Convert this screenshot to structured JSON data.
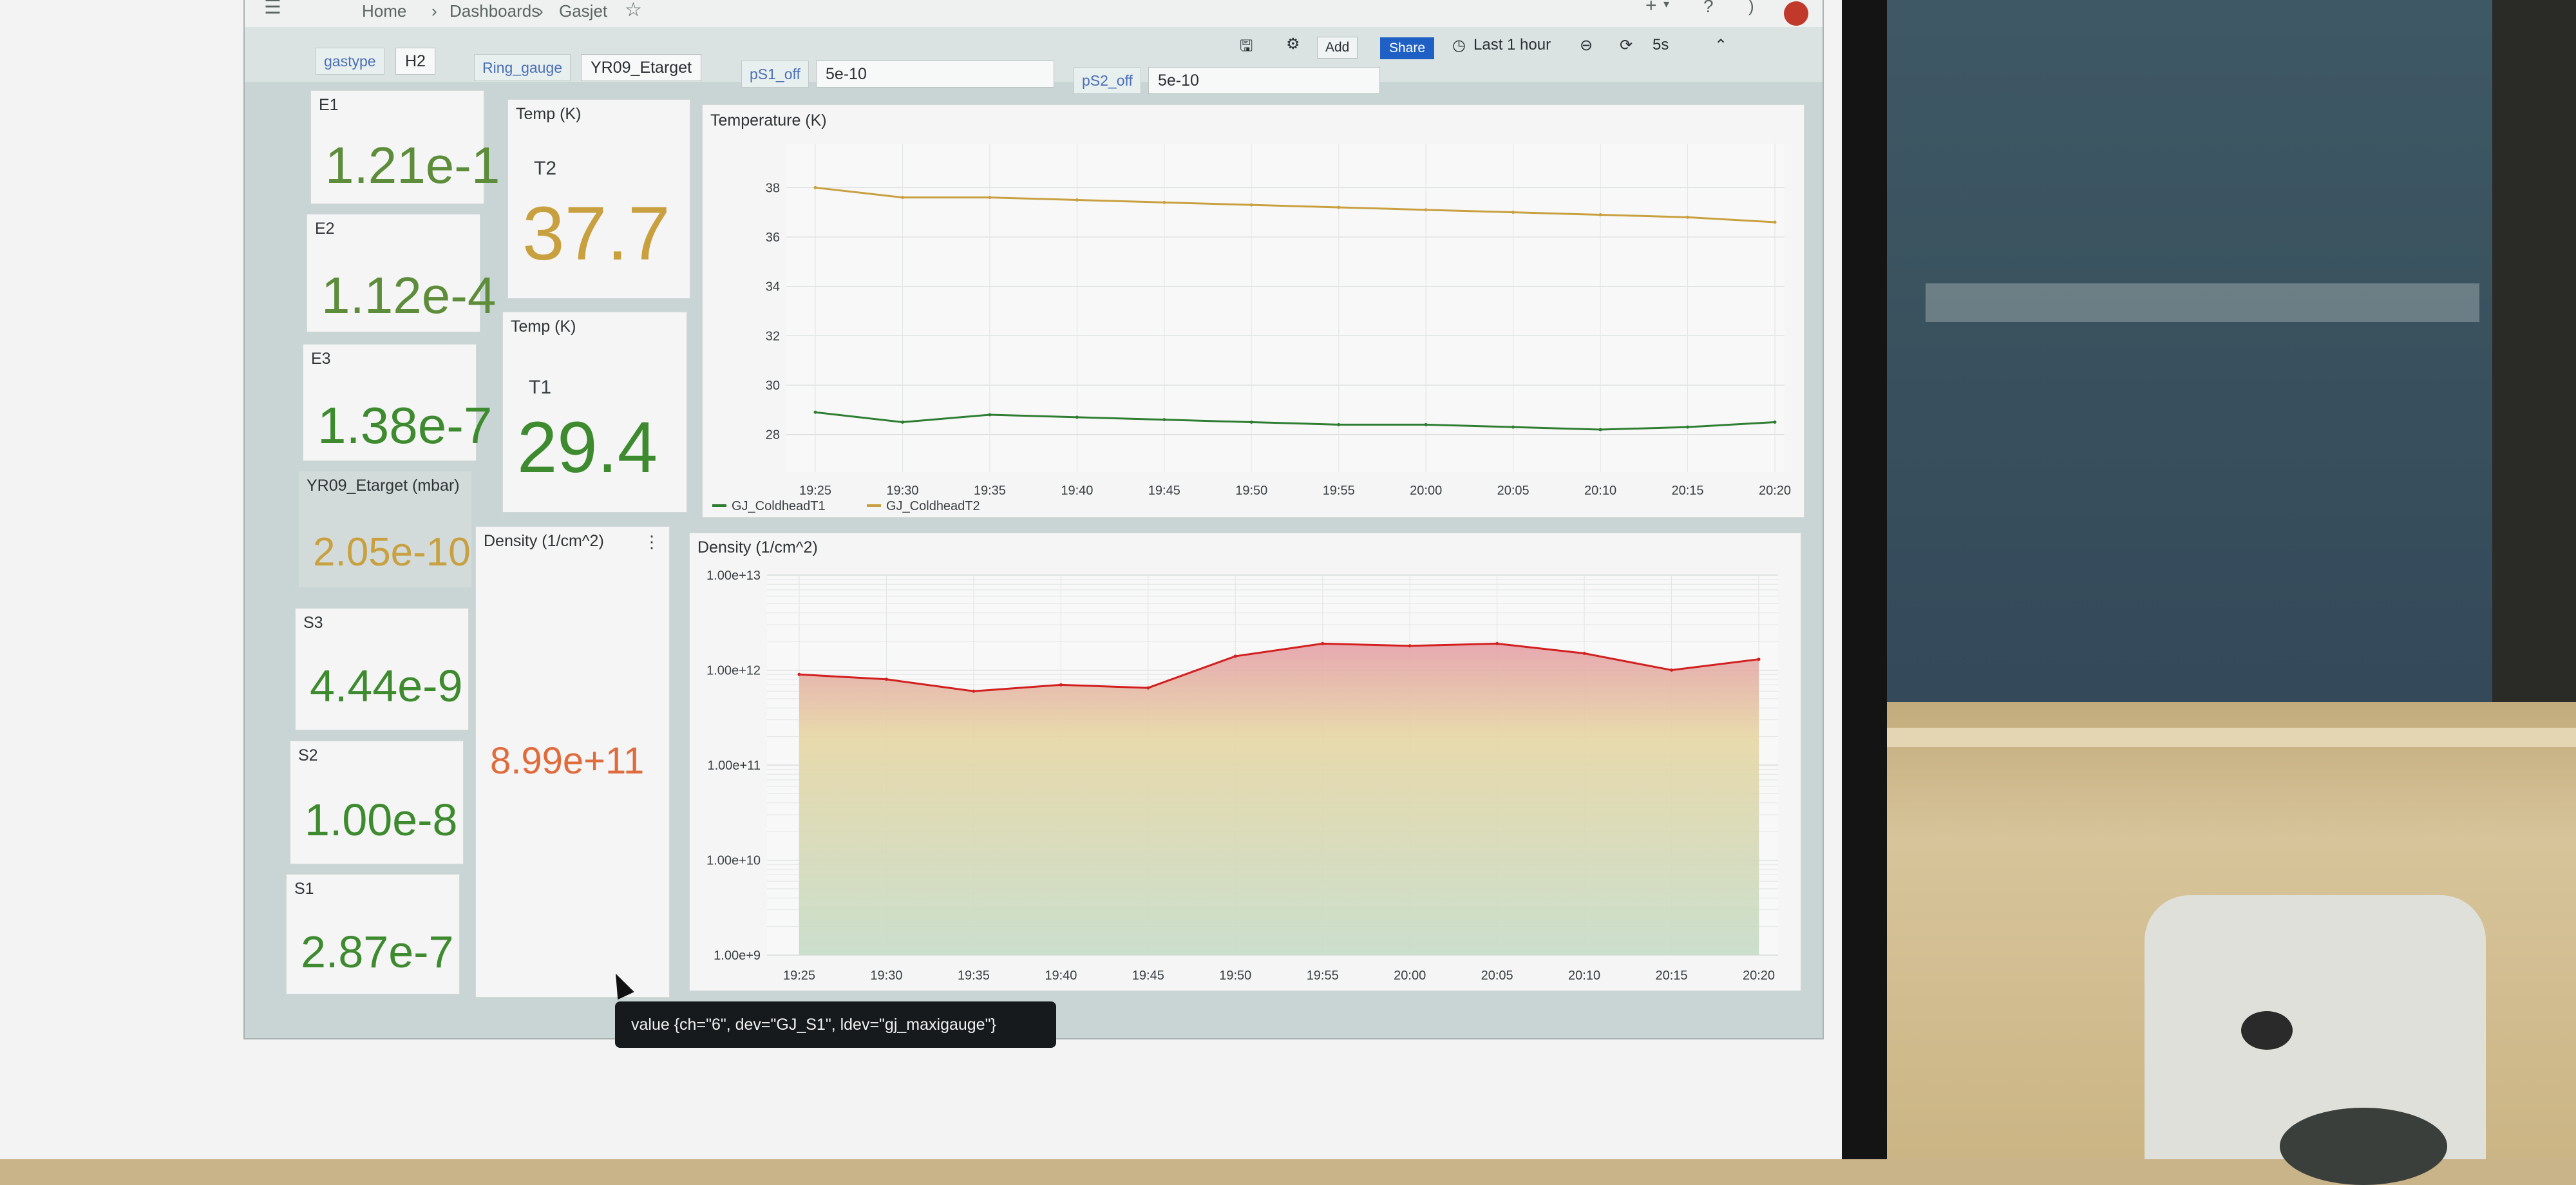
{
  "breadcrumb": {
    "home": "Home",
    "dashboards": "Dashboards",
    "current": "Gasjet"
  },
  "toolbar": {
    "add_label": "Add",
    "share_label": "Share",
    "time_range": "Last 1 hour",
    "refresh_interval": "5s"
  },
  "variables": {
    "gastype": {
      "label": "gastype",
      "value": "H2"
    },
    "ring_gauge": {
      "label": "Ring_gauge",
      "value": "YR09_Etarget"
    },
    "ps1_off": {
      "label": "pS1_off",
      "value": "5e-10"
    },
    "ps2_off": {
      "label": "pS2_off",
      "value": "5e-10"
    }
  },
  "stats": {
    "e1": {
      "title": "E1",
      "value": "1.21e-1"
    },
    "e2": {
      "title": "E2",
      "value": "1.12e-4"
    },
    "e3": {
      "title": "E3",
      "value": "1.38e-7"
    },
    "ring": {
      "title": "YR09_Etarget (mbar)",
      "value": "2.05e-10"
    },
    "s3": {
      "title": "S3",
      "value": "4.44e-9"
    },
    "s2": {
      "title": "S2",
      "value": "1.00e-8"
    },
    "s1": {
      "title": "S1",
      "value": "2.87e-7"
    },
    "t2": {
      "title": "Temp (K)",
      "sub": "T2",
      "value": "37.7"
    },
    "t1": {
      "title": "Temp (K)",
      "sub": "T1",
      "value": "29.4"
    },
    "density": {
      "title": "Density (1/cm^2)",
      "value": "8.99e+11"
    }
  },
  "colors": {
    "green": "#3e8a2f",
    "yellow": "#c9a040",
    "orange": "#e06b3c",
    "red": "#d21f1f",
    "share_blue": "#1f60c4"
  },
  "chart_data": [
    {
      "type": "line",
      "title": "Temperature (K)",
      "x": [
        "19:25",
        "19:30",
        "19:35",
        "19:40",
        "19:45",
        "19:50",
        "19:55",
        "20:00",
        "20:05",
        "20:10",
        "20:15",
        "20:20"
      ],
      "ylim": [
        27,
        39
      ],
      "yticks": [
        "28",
        "30",
        "32",
        "34",
        "36",
        "38"
      ],
      "grid": true,
      "legend_placement": "bottom-left",
      "series": [
        {
          "name": "GJ_ColdheadT1",
          "color": "#2e7d32",
          "values": [
            28.9,
            28.5,
            28.8,
            28.7,
            28.6,
            28.5,
            28.4,
            28.4,
            28.3,
            28.2,
            28.3,
            28.5
          ]
        },
        {
          "name": "GJ_ColdheadT2",
          "color": "#c9a040",
          "values": [
            38.0,
            37.6,
            37.6,
            37.5,
            37.4,
            37.3,
            37.2,
            37.1,
            37.0,
            36.9,
            36.8,
            36.6
          ]
        }
      ]
    },
    {
      "type": "area",
      "title": "Density (1/cm^2)",
      "x": [
        "19:25",
        "19:30",
        "19:35",
        "19:40",
        "19:45",
        "19:50",
        "19:55",
        "20:00",
        "20:05",
        "20:10",
        "20:15",
        "20:20"
      ],
      "yscale": "log",
      "ylim": [
        1000000000.0,
        10000000000000.0
      ],
      "yticks": [
        "1.00e+9",
        "1.00e+10",
        "1.00e+11",
        "1.00e+12",
        "1.00e+13"
      ],
      "grid": true,
      "series": [
        {
          "name": "",
          "values": [
            900000000000.0,
            800000000000.0,
            600000000000.0,
            700000000000.0,
            650000000000.0,
            1400000000000.0,
            1900000000000.0,
            1800000000000.0,
            1900000000000.0,
            1500000000000.0,
            1000000000000.0,
            1300000000000.0
          ]
        }
      ]
    }
  ],
  "tooltip": {
    "text": "value {ch=\"6\", dev=\"GJ_S1\", ldev=\"gj_maxigauge\"}"
  }
}
